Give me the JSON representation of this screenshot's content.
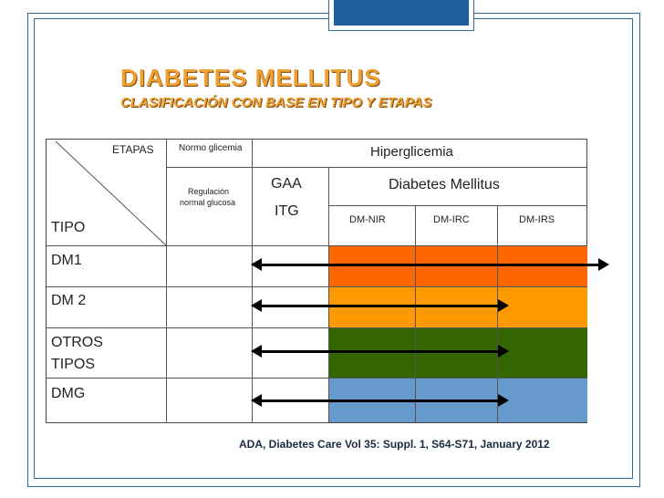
{
  "slide": {
    "title": "DIABETES MELLITUS",
    "subtitle": "CLASIFICACIÓN CON BASE EN TIPO Y ETAPAS",
    "citation": "ADA, Diabetes Care Vol 35: Suppl. 1, S64-S71, January 2012"
  },
  "table": {
    "header": {
      "etapas": "ETAPAS",
      "tipo": "TIPO",
      "normo": "Normo glicemia",
      "regulacion_line1": "Regulación",
      "regulacion_line2": "normal glucosa",
      "hiperglicemia": "Hiperglicemia",
      "gaa": "GAA",
      "itg": "ITG",
      "diabetes_mellitus": "Diabetes Mellitus",
      "dm_nir": "DM-NIR",
      "dm_irc": "DM-IRC",
      "dm_irs": "DM-IRS"
    },
    "rows": [
      {
        "label_line1": "DM1",
        "label_line2": "",
        "color": "#ff6600"
      },
      {
        "label_line1": "DM 2",
        "label_line2": "",
        "color": "#ff9900"
      },
      {
        "label_line1": "OTROS",
        "label_line2": "TIPOS",
        "color": "#336600"
      },
      {
        "label_line1": "DMG",
        "label_line2": "",
        "color": "#6699cc"
      }
    ]
  },
  "colors": {
    "title": "#f0a030",
    "frame": "#2e6a9a",
    "arrow": "#000000"
  }
}
